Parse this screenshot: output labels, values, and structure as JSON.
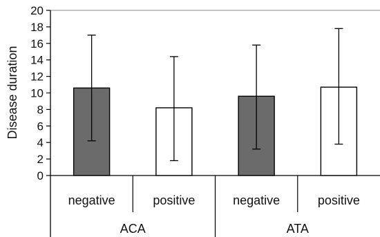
{
  "chart_data": {
    "type": "bar",
    "ylabel": "Disease duration",
    "ylim": [
      0,
      20
    ],
    "yticks": [
      0,
      2,
      4,
      6,
      8,
      10,
      12,
      14,
      16,
      18,
      20
    ],
    "groups": [
      {
        "label": "ACA",
        "bars": [
          {
            "category": "negative",
            "value": 10.6,
            "err_low": 4.2,
            "err_high": 17.0,
            "fill": "#6b6b6b"
          },
          {
            "category": "positive",
            "value": 8.2,
            "err_low": 1.8,
            "err_high": 14.4,
            "fill": "#ffffff"
          }
        ]
      },
      {
        "label": "ATA",
        "bars": [
          {
            "category": "negative",
            "value": 9.6,
            "err_low": 3.2,
            "err_high": 15.8,
            "fill": "#6b6b6b"
          },
          {
            "category": "positive",
            "value": 10.7,
            "err_low": 3.8,
            "err_high": 17.8,
            "fill": "#ffffff"
          }
        ]
      }
    ],
    "grid": false,
    "legend": "none"
  }
}
